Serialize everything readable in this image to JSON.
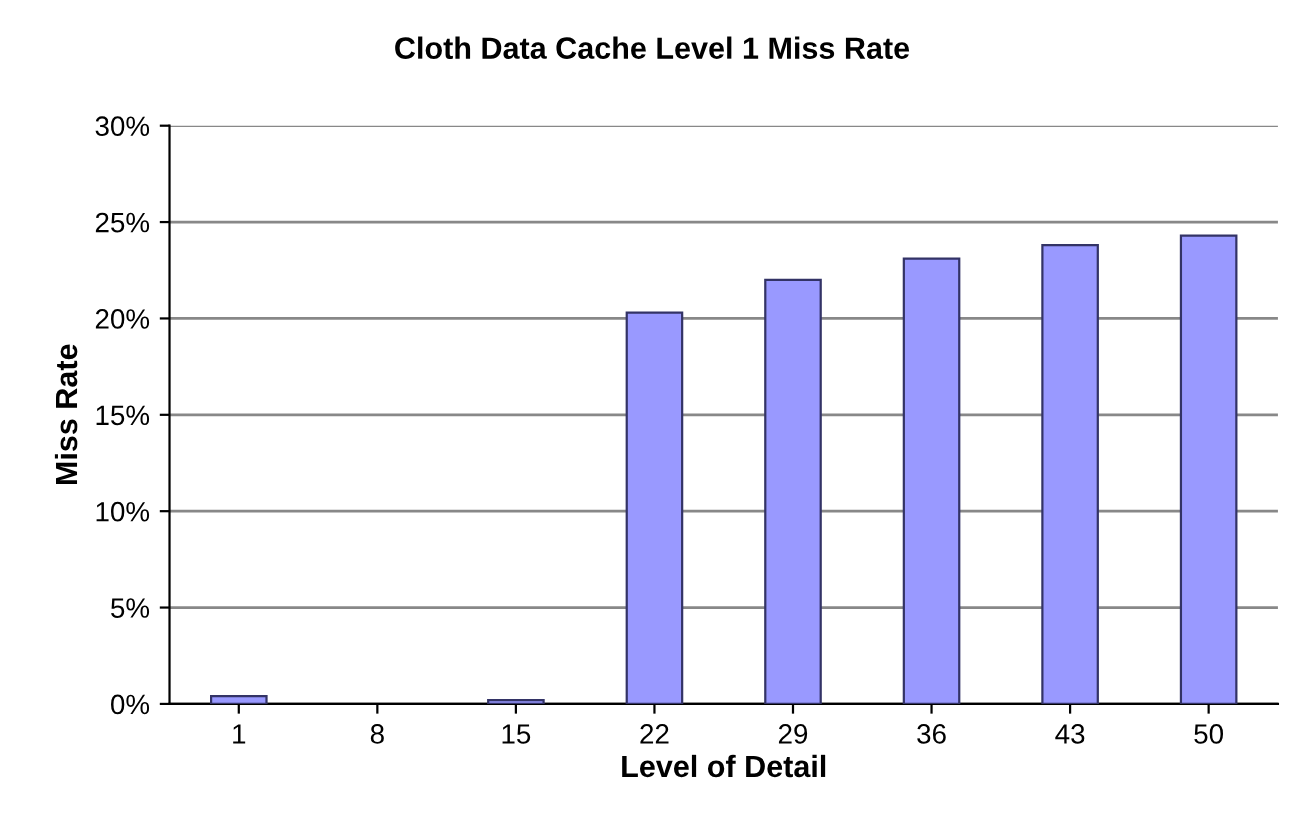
{
  "chart_data": {
    "type": "bar",
    "title": "Cloth Data Cache Level 1 Miss Rate",
    "xlabel": "Level of Detail",
    "ylabel": "Miss Rate",
    "categories": [
      "1",
      "8",
      "15",
      "22",
      "29",
      "36",
      "43",
      "50"
    ],
    "values": [
      0.4,
      0,
      0.2,
      20.3,
      22.0,
      23.1,
      23.8,
      24.3
    ],
    "color": "#9999ff",
    "ylim": [
      0,
      30
    ],
    "yticks": [
      {
        "value": 0,
        "label": "0%"
      },
      {
        "value": 5,
        "label": "5%"
      },
      {
        "value": 10,
        "label": "10%"
      },
      {
        "value": 15,
        "label": "15%"
      },
      {
        "value": 20,
        "label": "20%"
      },
      {
        "value": 25,
        "label": "25%"
      },
      {
        "value": 30,
        "label": "30%"
      }
    ],
    "grid": "y"
  }
}
